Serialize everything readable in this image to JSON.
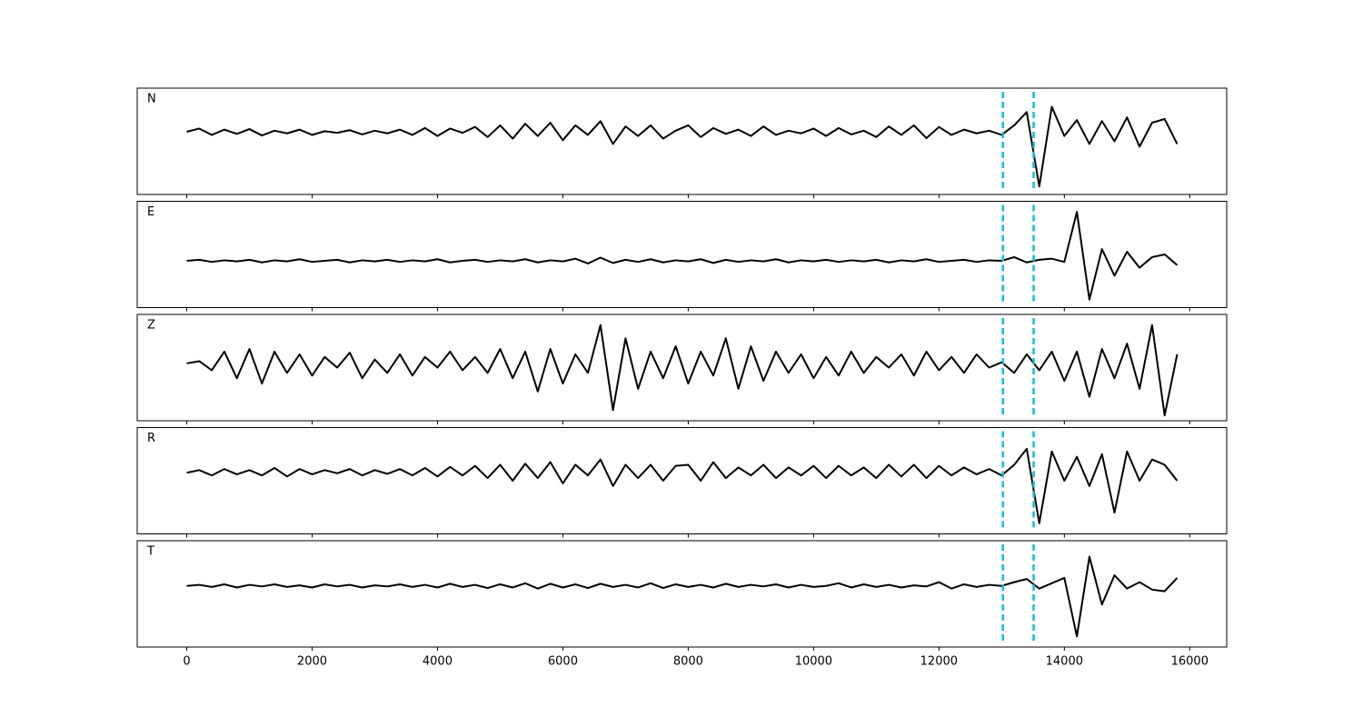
{
  "chart_data": {
    "type": "line",
    "x": [
      0,
      200,
      400,
      600,
      800,
      1000,
      1200,
      1400,
      1600,
      1800,
      2000,
      2200,
      2400,
      2600,
      2800,
      3000,
      3200,
      3400,
      3600,
      3800,
      4000,
      4200,
      4400,
      4600,
      4800,
      5000,
      5200,
      5400,
      5600,
      5800,
      6000,
      6200,
      6400,
      6600,
      6800,
      7000,
      7200,
      7400,
      7600,
      7800,
      8000,
      8200,
      8400,
      8600,
      8800,
      9000,
      9200,
      9400,
      9600,
      9800,
      10000,
      10200,
      10400,
      10600,
      10800,
      11000,
      11200,
      11400,
      11600,
      11800,
      12000,
      12200,
      12400,
      12600,
      12800,
      13000,
      13200,
      13400,
      13600,
      13800,
      14000,
      14200,
      14400,
      14600,
      14800,
      15000,
      15200,
      15400,
      15600,
      15800
    ],
    "xlim": [
      -790,
      16590
    ],
    "xticks": [
      0,
      2000,
      4000,
      6000,
      8000,
      10000,
      12000,
      14000,
      16000
    ],
    "ylim": [
      -1,
      1
    ],
    "color": "#000000",
    "picks": {
      "color": "#17becf",
      "x": [
        13020,
        13510
      ]
    },
    "series": [
      {
        "name": "N",
        "values": [
          0.18,
          0.24,
          0.12,
          0.22,
          0.14,
          0.23,
          0.11,
          0.2,
          0.15,
          0.22,
          0.12,
          0.19,
          0.16,
          0.21,
          0.13,
          0.2,
          0.15,
          0.22,
          0.12,
          0.25,
          0.1,
          0.24,
          0.16,
          0.27,
          0.08,
          0.3,
          0.05,
          0.33,
          0.1,
          0.35,
          0.02,
          0.3,
          0.12,
          0.38,
          -0.05,
          0.28,
          0.1,
          0.3,
          0.05,
          0.2,
          0.3,
          0.08,
          0.25,
          0.14,
          0.22,
          0.1,
          0.28,
          0.12,
          0.2,
          0.15,
          0.24,
          0.1,
          0.25,
          0.13,
          0.2,
          0.08,
          0.28,
          0.12,
          0.3,
          0.06,
          0.27,
          0.12,
          0.22,
          0.15,
          0.2,
          0.12,
          0.3,
          0.55,
          -0.85,
          0.65,
          0.1,
          0.4,
          -0.05,
          0.38,
          0.0,
          0.45,
          -0.1,
          0.35,
          0.42,
          -0.05
        ]
      },
      {
        "name": "E",
        "values": [
          -0.12,
          -0.1,
          -0.14,
          -0.11,
          -0.13,
          -0.1,
          -0.15,
          -0.11,
          -0.13,
          -0.09,
          -0.14,
          -0.12,
          -0.1,
          -0.15,
          -0.11,
          -0.13,
          -0.1,
          -0.14,
          -0.11,
          -0.13,
          -0.09,
          -0.15,
          -0.12,
          -0.1,
          -0.14,
          -0.11,
          -0.13,
          -0.09,
          -0.15,
          -0.11,
          -0.13,
          -0.08,
          -0.17,
          -0.06,
          -0.16,
          -0.1,
          -0.14,
          -0.09,
          -0.15,
          -0.11,
          -0.13,
          -0.09,
          -0.16,
          -0.1,
          -0.14,
          -0.11,
          -0.13,
          -0.09,
          -0.15,
          -0.11,
          -0.13,
          -0.1,
          -0.14,
          -0.11,
          -0.13,
          -0.1,
          -0.15,
          -0.11,
          -0.13,
          -0.09,
          -0.14,
          -0.12,
          -0.1,
          -0.14,
          -0.11,
          -0.12,
          -0.05,
          -0.15,
          -0.1,
          -0.08,
          -0.14,
          0.8,
          -0.85,
          0.1,
          -0.4,
          0.05,
          -0.25,
          -0.05,
          0.0,
          -0.2
        ]
      },
      {
        "name": "Z",
        "values": [
          0.08,
          0.12,
          -0.05,
          0.3,
          -0.2,
          0.35,
          -0.3,
          0.3,
          -0.1,
          0.25,
          -0.15,
          0.2,
          0.0,
          0.28,
          -0.2,
          0.15,
          -0.1,
          0.25,
          -0.15,
          0.2,
          0.0,
          0.3,
          -0.05,
          0.2,
          -0.1,
          0.35,
          -0.2,
          0.3,
          -0.45,
          0.35,
          -0.3,
          0.25,
          -0.1,
          0.8,
          -0.8,
          0.55,
          -0.4,
          0.3,
          -0.2,
          0.4,
          -0.3,
          0.3,
          -0.15,
          0.55,
          -0.4,
          0.4,
          -0.25,
          0.3,
          -0.1,
          0.25,
          -0.2,
          0.2,
          -0.15,
          0.3,
          -0.1,
          0.2,
          0.0,
          0.25,
          -0.15,
          0.3,
          -0.05,
          0.2,
          -0.1,
          0.25,
          0.0,
          0.1,
          -0.1,
          0.25,
          -0.05,
          0.3,
          -0.25,
          0.3,
          -0.55,
          0.35,
          -0.2,
          0.45,
          -0.4,
          0.8,
          -0.9,
          0.25
        ]
      },
      {
        "name": "R",
        "values": [
          0.15,
          0.2,
          0.1,
          0.22,
          0.12,
          0.2,
          0.1,
          0.24,
          0.08,
          0.22,
          0.12,
          0.2,
          0.14,
          0.22,
          0.1,
          0.2,
          0.13,
          0.22,
          0.1,
          0.24,
          0.08,
          0.26,
          0.1,
          0.28,
          0.05,
          0.3,
          0.0,
          0.32,
          0.05,
          0.35,
          -0.05,
          0.3,
          0.1,
          0.4,
          -0.1,
          0.3,
          0.05,
          0.3,
          0.0,
          0.28,
          0.3,
          0.0,
          0.35,
          0.05,
          0.25,
          0.1,
          0.3,
          0.05,
          0.25,
          0.1,
          0.28,
          0.05,
          0.28,
          0.1,
          0.25,
          0.05,
          0.3,
          0.08,
          0.3,
          0.05,
          0.28,
          0.1,
          0.25,
          0.12,
          0.22,
          0.1,
          0.3,
          0.6,
          -0.8,
          0.55,
          0.0,
          0.45,
          -0.1,
          0.5,
          -0.6,
          0.55,
          0.0,
          0.4,
          0.3,
          0.0
        ]
      },
      {
        "name": "T",
        "values": [
          0.15,
          0.17,
          0.13,
          0.18,
          0.12,
          0.17,
          0.14,
          0.18,
          0.13,
          0.16,
          0.12,
          0.18,
          0.14,
          0.17,
          0.12,
          0.16,
          0.14,
          0.18,
          0.13,
          0.17,
          0.12,
          0.19,
          0.13,
          0.17,
          0.11,
          0.18,
          0.12,
          0.2,
          0.1,
          0.19,
          0.12,
          0.18,
          0.11,
          0.19,
          0.13,
          0.17,
          0.12,
          0.2,
          0.11,
          0.18,
          0.13,
          0.17,
          0.12,
          0.19,
          0.13,
          0.17,
          0.14,
          0.18,
          0.12,
          0.17,
          0.13,
          0.15,
          0.2,
          0.12,
          0.18,
          0.13,
          0.17,
          0.12,
          0.16,
          0.14,
          0.22,
          0.1,
          0.18,
          0.13,
          0.17,
          0.15,
          0.22,
          0.28,
          0.1,
          0.2,
          0.3,
          -0.8,
          0.7,
          -0.2,
          0.35,
          0.1,
          0.22,
          0.08,
          0.05,
          0.3
        ]
      }
    ]
  }
}
